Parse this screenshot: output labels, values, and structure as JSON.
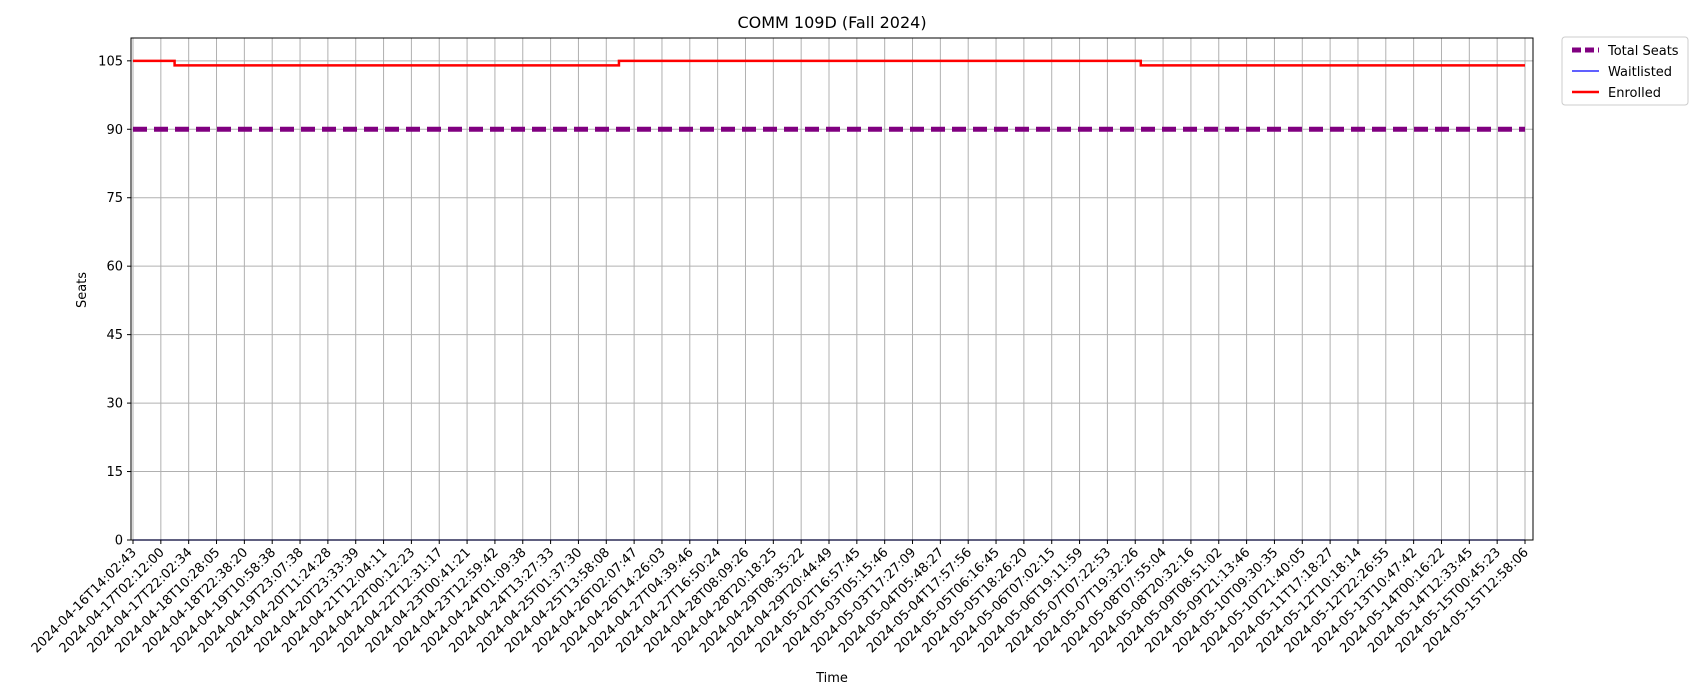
{
  "chart_data": {
    "type": "line",
    "title": "COMM 109D (Fall 2024)",
    "xlabel": "Time",
    "ylabel": "Seats",
    "ylim": [
      0,
      110
    ],
    "yticks": [
      0,
      15,
      30,
      45,
      60,
      75,
      90,
      105
    ],
    "grid": true,
    "legend_position": "outside-top-right",
    "x_ticks": [
      "2024-04-16T14:02:43",
      "2024-04-17T02:12:00",
      "2024-04-17T22:02:34",
      "2024-04-18T10:28:05",
      "2024-04-18T22:38:20",
      "2024-04-19T10:58:38",
      "2024-04-19T23:07:38",
      "2024-04-20T11:24:28",
      "2024-04-20T23:33:39",
      "2024-04-21T12:04:11",
      "2024-04-22T00:12:23",
      "2024-04-22T12:31:17",
      "2024-04-23T00:41:21",
      "2024-04-23T12:59:42",
      "2024-04-24T01:09:38",
      "2024-04-24T13:27:33",
      "2024-04-25T01:37:30",
      "2024-04-25T13:58:08",
      "2024-04-26T02:07:47",
      "2024-04-26T14:26:03",
      "2024-04-27T04:39:46",
      "2024-04-27T16:50:24",
      "2024-04-28T08:09:26",
      "2024-04-28T20:18:25",
      "2024-04-29T08:35:22",
      "2024-04-29T20:44:49",
      "2024-05-02T16:57:45",
      "2024-05-03T05:15:46",
      "2024-05-03T17:27:09",
      "2024-05-04T05:48:27",
      "2024-05-04T17:57:56",
      "2024-05-05T06:16:45",
      "2024-05-05T18:26:20",
      "2024-05-06T07:02:15",
      "2024-05-06T19:11:59",
      "2024-05-07T07:22:53",
      "2024-05-07T19:32:26",
      "2024-05-08T07:55:04",
      "2024-05-08T20:32:16",
      "2024-05-09T08:51:02",
      "2024-05-09T21:13:46",
      "2024-05-10T09:30:35",
      "2024-05-10T21:40:05",
      "2024-05-11T17:18:27",
      "2024-05-12T10:18:14",
      "2024-05-12T22:26:55",
      "2024-05-13T10:47:42",
      "2024-05-14T00:16:22",
      "2024-05-14T12:33:45",
      "2024-05-15T00:45:23",
      "2024-05-15T12:58:06"
    ],
    "series": [
      {
        "name": "Total Seats",
        "color": "#800080",
        "style": "dashed",
        "points": [
          {
            "x": "2024-04-16T14:02:43",
            "y": 90
          },
          {
            "x": "2024-05-15T12:58:06",
            "y": 90
          }
        ]
      },
      {
        "name": "Waitlisted",
        "color": "#0000ff",
        "style": "solid",
        "points": [
          {
            "x": "2024-04-16T14:02:43",
            "y": 0
          },
          {
            "x": "2024-05-15T12:58:06",
            "y": 0
          }
        ]
      },
      {
        "name": "Enrolled",
        "color": "#ff0000",
        "style": "solid",
        "points": [
          {
            "x": "2024-04-16T14:02:43",
            "y": 105
          },
          {
            "x": "2024-04-17T12:00:00",
            "y": 105
          },
          {
            "x": "2024-04-17T12:00:00",
            "y": 104
          },
          {
            "x": "2024-04-25T19:30:00",
            "y": 104
          },
          {
            "x": "2024-04-25T19:30:00",
            "y": 105
          },
          {
            "x": "2024-05-07T22:00:00",
            "y": 105
          },
          {
            "x": "2024-05-07T22:00:00",
            "y": 104
          },
          {
            "x": "2024-05-15T12:58:06",
            "y": 104
          }
        ]
      }
    ]
  }
}
